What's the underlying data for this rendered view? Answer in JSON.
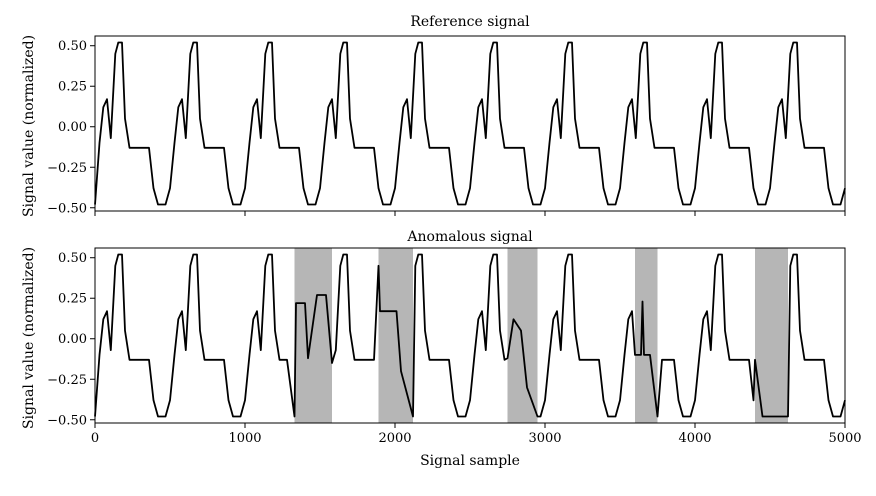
{
  "colors": {
    "line": "#000000",
    "anomaly_shading": "#a9a9a9",
    "background": "#ffffff"
  },
  "chart_data": [
    {
      "type": "line",
      "title": "Reference signal",
      "xlabel": "",
      "ylabel": "Signal value (normalized)",
      "xlim": [
        0,
        5000
      ],
      "ylim": [
        -0.52,
        0.56
      ],
      "yticks": [
        -0.5,
        -0.25,
        0.0,
        0.25,
        0.5
      ],
      "ytick_labels": [
        "−0.50",
        "−0.25",
        "0.00",
        "0.25",
        "0.50"
      ],
      "xticks": [
        0,
        1000,
        2000,
        3000,
        4000,
        5000
      ],
      "xtick_labels": [],
      "grid": false,
      "period": 500,
      "cycles": 10,
      "cycle_shape": {
        "x_offset": [
          0,
          30,
          55,
          80,
          105,
          135,
          155,
          180,
          200,
          230,
          280,
          360,
          390,
          420,
          470,
          500
        ],
        "y": [
          -0.48,
          -0.1,
          0.12,
          0.17,
          -0.07,
          0.45,
          0.52,
          0.52,
          0.05,
          -0.13,
          -0.13,
          -0.13,
          -0.38,
          -0.48,
          -0.48,
          -0.38
        ]
      }
    },
    {
      "type": "line",
      "title": "Anomalous signal",
      "xlabel": "Signal sample",
      "ylabel": "Signal value (normalized)",
      "xlim": [
        0,
        5000
      ],
      "ylim": [
        -0.52,
        0.56
      ],
      "yticks": [
        -0.5,
        -0.25,
        0.0,
        0.25,
        0.5
      ],
      "ytick_labels": [
        "−0.50",
        "−0.25",
        "0.00",
        "0.25",
        "0.50"
      ],
      "xticks": [
        0,
        1000,
        2000,
        3000,
        4000,
        5000
      ],
      "xtick_labels": [
        "0",
        "1000",
        "2000",
        "3000",
        "4000",
        "5000"
      ],
      "grid": false,
      "anomaly_regions": [
        [
          1330,
          1580
        ],
        [
          1890,
          2120
        ],
        [
          2750,
          2950
        ],
        [
          3600,
          3750
        ],
        [
          4400,
          4620
        ]
      ],
      "anomaly_overrides": [
        {
          "x": [
            1330,
            1340,
            1400,
            1420,
            1480,
            1540,
            1580
          ],
          "y": [
            -0.48,
            0.22,
            0.22,
            -0.12,
            0.27,
            0.27,
            -0.15
          ]
        },
        {
          "x": [
            1890,
            1900,
            2010,
            2040,
            2120
          ],
          "y": [
            0.45,
            0.17,
            0.17,
            -0.2,
            -0.48
          ]
        },
        {
          "x": [
            2750,
            2790,
            2840,
            2880,
            2950
          ],
          "y": [
            -0.12,
            0.12,
            0.05,
            -0.3,
            -0.48
          ]
        },
        {
          "x": [
            3600,
            3640,
            3650,
            3660,
            3700,
            3750
          ],
          "y": [
            -0.1,
            -0.1,
            0.23,
            -0.1,
            -0.1,
            -0.48
          ]
        },
        {
          "x": [
            4400,
            4450,
            4480,
            4620
          ],
          "y": [
            -0.13,
            -0.48,
            -0.48,
            -0.48
          ]
        }
      ]
    }
  ]
}
